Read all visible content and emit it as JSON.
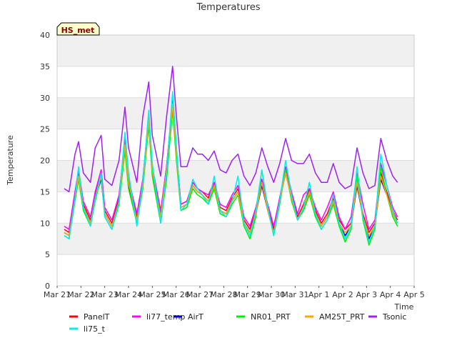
{
  "chart_data": {
    "type": "line",
    "title": "Temperatures",
    "xlabel": "Time",
    "ylabel": "Temperature",
    "badge": "HS_met",
    "ylim": [
      0,
      40
    ],
    "yticks": [
      0,
      5,
      10,
      15,
      20,
      25,
      30,
      35,
      40
    ],
    "xlim": [
      0,
      15
    ],
    "x_ticks": [
      "Mar 21",
      "Mar 22",
      "Mar 23",
      "Mar 24",
      "Mar 25",
      "Mar 26",
      "Mar 27",
      "Mar 28",
      "Mar 29",
      "Mar 30",
      "Mar 31",
      "Apr 1",
      "Apr 2",
      "Apr 3",
      "Apr 4",
      "Apr 5"
    ],
    "band_color": "#f0f0f0",
    "x": [
      0.3,
      0.5,
      0.75,
      0.9,
      1.1,
      1.4,
      1.6,
      1.85,
      2.0,
      2.3,
      2.6,
      2.85,
      3.0,
      3.35,
      3.6,
      3.85,
      4.0,
      4.35,
      4.6,
      4.85,
      5.0,
      5.2,
      5.45,
      5.7,
      5.9,
      6.1,
      6.35,
      6.6,
      6.85,
      7.1,
      7.35,
      7.6,
      7.85,
      8.1,
      8.35,
      8.6,
      8.85,
      9.1,
      9.35,
      9.6,
      9.85,
      10.1,
      10.35,
      10.6,
      10.85,
      11.1,
      11.35,
      11.6,
      11.85,
      12.1,
      12.35,
      12.6,
      12.85,
      13.1,
      13.35,
      13.6,
      13.85,
      14.1,
      14.3
    ],
    "series": [
      {
        "name": "PanelT",
        "color": "#ff0000",
        "values": [
          9.0,
          8.5,
          14.5,
          18.0,
          13.0,
          10.5,
          14.5,
          18.5,
          12.0,
          10.0,
          14.0,
          23.5,
          17.0,
          11.0,
          16.5,
          27.5,
          19.0,
          11.5,
          19.0,
          29.5,
          22.0,
          13.0,
          13.5,
          16.5,
          15.5,
          15.0,
          14.0,
          16.5,
          12.5,
          12.0,
          14.0,
          15.5,
          10.5,
          9.0,
          12.0,
          17.0,
          12.5,
          9.0,
          14.0,
          18.5,
          14.5,
          11.0,
          13.0,
          15.5,
          12.0,
          10.0,
          11.5,
          14.0,
          10.5,
          9.0,
          10.0,
          16.0,
          11.5,
          8.5,
          10.0,
          18.0,
          15.0,
          12.0,
          10.5
        ]
      },
      {
        "name": "li77_temp",
        "color": "#ff00ff",
        "values": [
          9.5,
          9.0,
          15.0,
          18.5,
          13.5,
          11.0,
          15.0,
          18.5,
          12.5,
          10.5,
          14.5,
          23.0,
          17.0,
          11.5,
          17.0,
          27.0,
          19.0,
          12.0,
          19.0,
          29.0,
          22.0,
          13.0,
          13.5,
          16.5,
          15.5,
          15.0,
          14.5,
          16.5,
          13.0,
          12.5,
          14.5,
          16.0,
          11.0,
          9.5,
          12.5,
          17.0,
          13.0,
          9.5,
          14.0,
          19.0,
          15.0,
          11.5,
          14.5,
          15.5,
          12.5,
          10.5,
          12.5,
          15.0,
          11.0,
          9.0,
          11.0,
          18.0,
          13.0,
          9.0,
          10.5,
          19.5,
          16.0,
          12.5,
          11.0
        ]
      },
      {
        "name": "AirT",
        "color": "#0000cd",
        "values": [
          8.5,
          8.0,
          14.0,
          17.5,
          12.5,
          10.0,
          14.0,
          17.0,
          11.5,
          9.5,
          13.5,
          22.0,
          16.0,
          10.5,
          16.0,
          26.0,
          18.0,
          11.0,
          18.0,
          28.5,
          21.0,
          12.5,
          13.0,
          16.0,
          15.0,
          14.5,
          13.5,
          16.0,
          12.0,
          11.5,
          13.5,
          15.0,
          10.0,
          8.5,
          11.5,
          16.0,
          12.0,
          8.5,
          13.5,
          18.0,
          14.0,
          10.5,
          12.5,
          15.0,
          11.5,
          9.5,
          11.0,
          13.5,
          10.0,
          8.0,
          9.5,
          16.0,
          11.0,
          7.5,
          9.5,
          17.0,
          14.5,
          11.5,
          10.0
        ]
      },
      {
        "name": "NR01_PRT",
        "color": "#00ee00",
        "values": [
          8.0,
          7.5,
          13.5,
          17.0,
          12.0,
          9.5,
          13.5,
          17.5,
          11.0,
          9.0,
          13.0,
          21.5,
          15.5,
          10.0,
          15.5,
          25.5,
          17.5,
          10.0,
          17.0,
          28.0,
          20.5,
          12.0,
          12.5,
          15.5,
          14.5,
          14.0,
          13.0,
          15.5,
          11.5,
          11.0,
          13.0,
          14.5,
          9.5,
          7.5,
          11.0,
          18.5,
          12.5,
          8.0,
          13.0,
          18.5,
          13.5,
          10.5,
          12.0,
          14.5,
          11.0,
          9.0,
          10.5,
          13.0,
          9.5,
          7.0,
          9.0,
          17.5,
          10.5,
          6.5,
          9.0,
          19.0,
          14.5,
          11.0,
          9.5
        ]
      },
      {
        "name": "AM25T_PRT",
        "color": "#ffa500",
        "values": [
          8.5,
          8.0,
          14.0,
          17.5,
          12.5,
          10.0,
          14.0,
          17.5,
          11.5,
          9.5,
          13.5,
          22.5,
          16.5,
          10.5,
          16.0,
          26.5,
          18.5,
          11.0,
          18.5,
          29.0,
          21.5,
          12.5,
          13.0,
          16.0,
          15.0,
          14.5,
          13.5,
          16.0,
          12.0,
          11.5,
          13.5,
          15.0,
          10.0,
          8.5,
          11.5,
          16.5,
          12.0,
          8.5,
          13.5,
          18.0,
          14.0,
          10.5,
          12.5,
          15.0,
          11.5,
          9.5,
          11.0,
          13.5,
          10.0,
          8.5,
          9.5,
          16.5,
          11.0,
          8.0,
          9.5,
          17.5,
          14.5,
          11.5,
          10.0
        ]
      },
      {
        "name": "Tsonic",
        "color": "#a020f0",
        "values": [
          15.5,
          15.0,
          21.0,
          23.0,
          18.0,
          16.5,
          22.0,
          24.0,
          17.0,
          16.0,
          20.0,
          28.5,
          22.0,
          16.5,
          27.0,
          32.5,
          24.0,
          17.5,
          27.0,
          35.0,
          27.5,
          19.0,
          19.0,
          22.0,
          21.0,
          21.0,
          20.0,
          21.5,
          18.5,
          18.0,
          20.0,
          21.0,
          17.5,
          16.0,
          18.0,
          22.0,
          19.0,
          16.5,
          19.5,
          23.5,
          20.0,
          19.5,
          19.5,
          21.0,
          18.0,
          16.5,
          16.5,
          19.5,
          16.5,
          15.5,
          16.0,
          22.0,
          18.0,
          15.5,
          16.0,
          23.5,
          20.0,
          17.5,
          16.5
        ]
      },
      {
        "name": "li75_t",
        "color": "#00eeee",
        "values": [
          8.0,
          7.5,
          14.0,
          19.0,
          12.5,
          9.5,
          14.0,
          18.0,
          11.0,
          9.0,
          13.5,
          24.5,
          18.0,
          9.5,
          16.5,
          28.0,
          19.5,
          10.0,
          18.0,
          31.0,
          23.0,
          12.0,
          13.0,
          17.0,
          15.5,
          14.5,
          13.0,
          17.5,
          12.0,
          11.0,
          13.5,
          17.5,
          10.0,
          8.0,
          12.0,
          18.5,
          12.5,
          8.0,
          13.5,
          20.0,
          14.5,
          10.5,
          12.5,
          16.5,
          11.5,
          9.0,
          10.5,
          14.5,
          10.0,
          7.5,
          9.5,
          19.0,
          11.0,
          7.0,
          9.5,
          21.0,
          16.0,
          12.0,
          10.0
        ]
      }
    ]
  }
}
